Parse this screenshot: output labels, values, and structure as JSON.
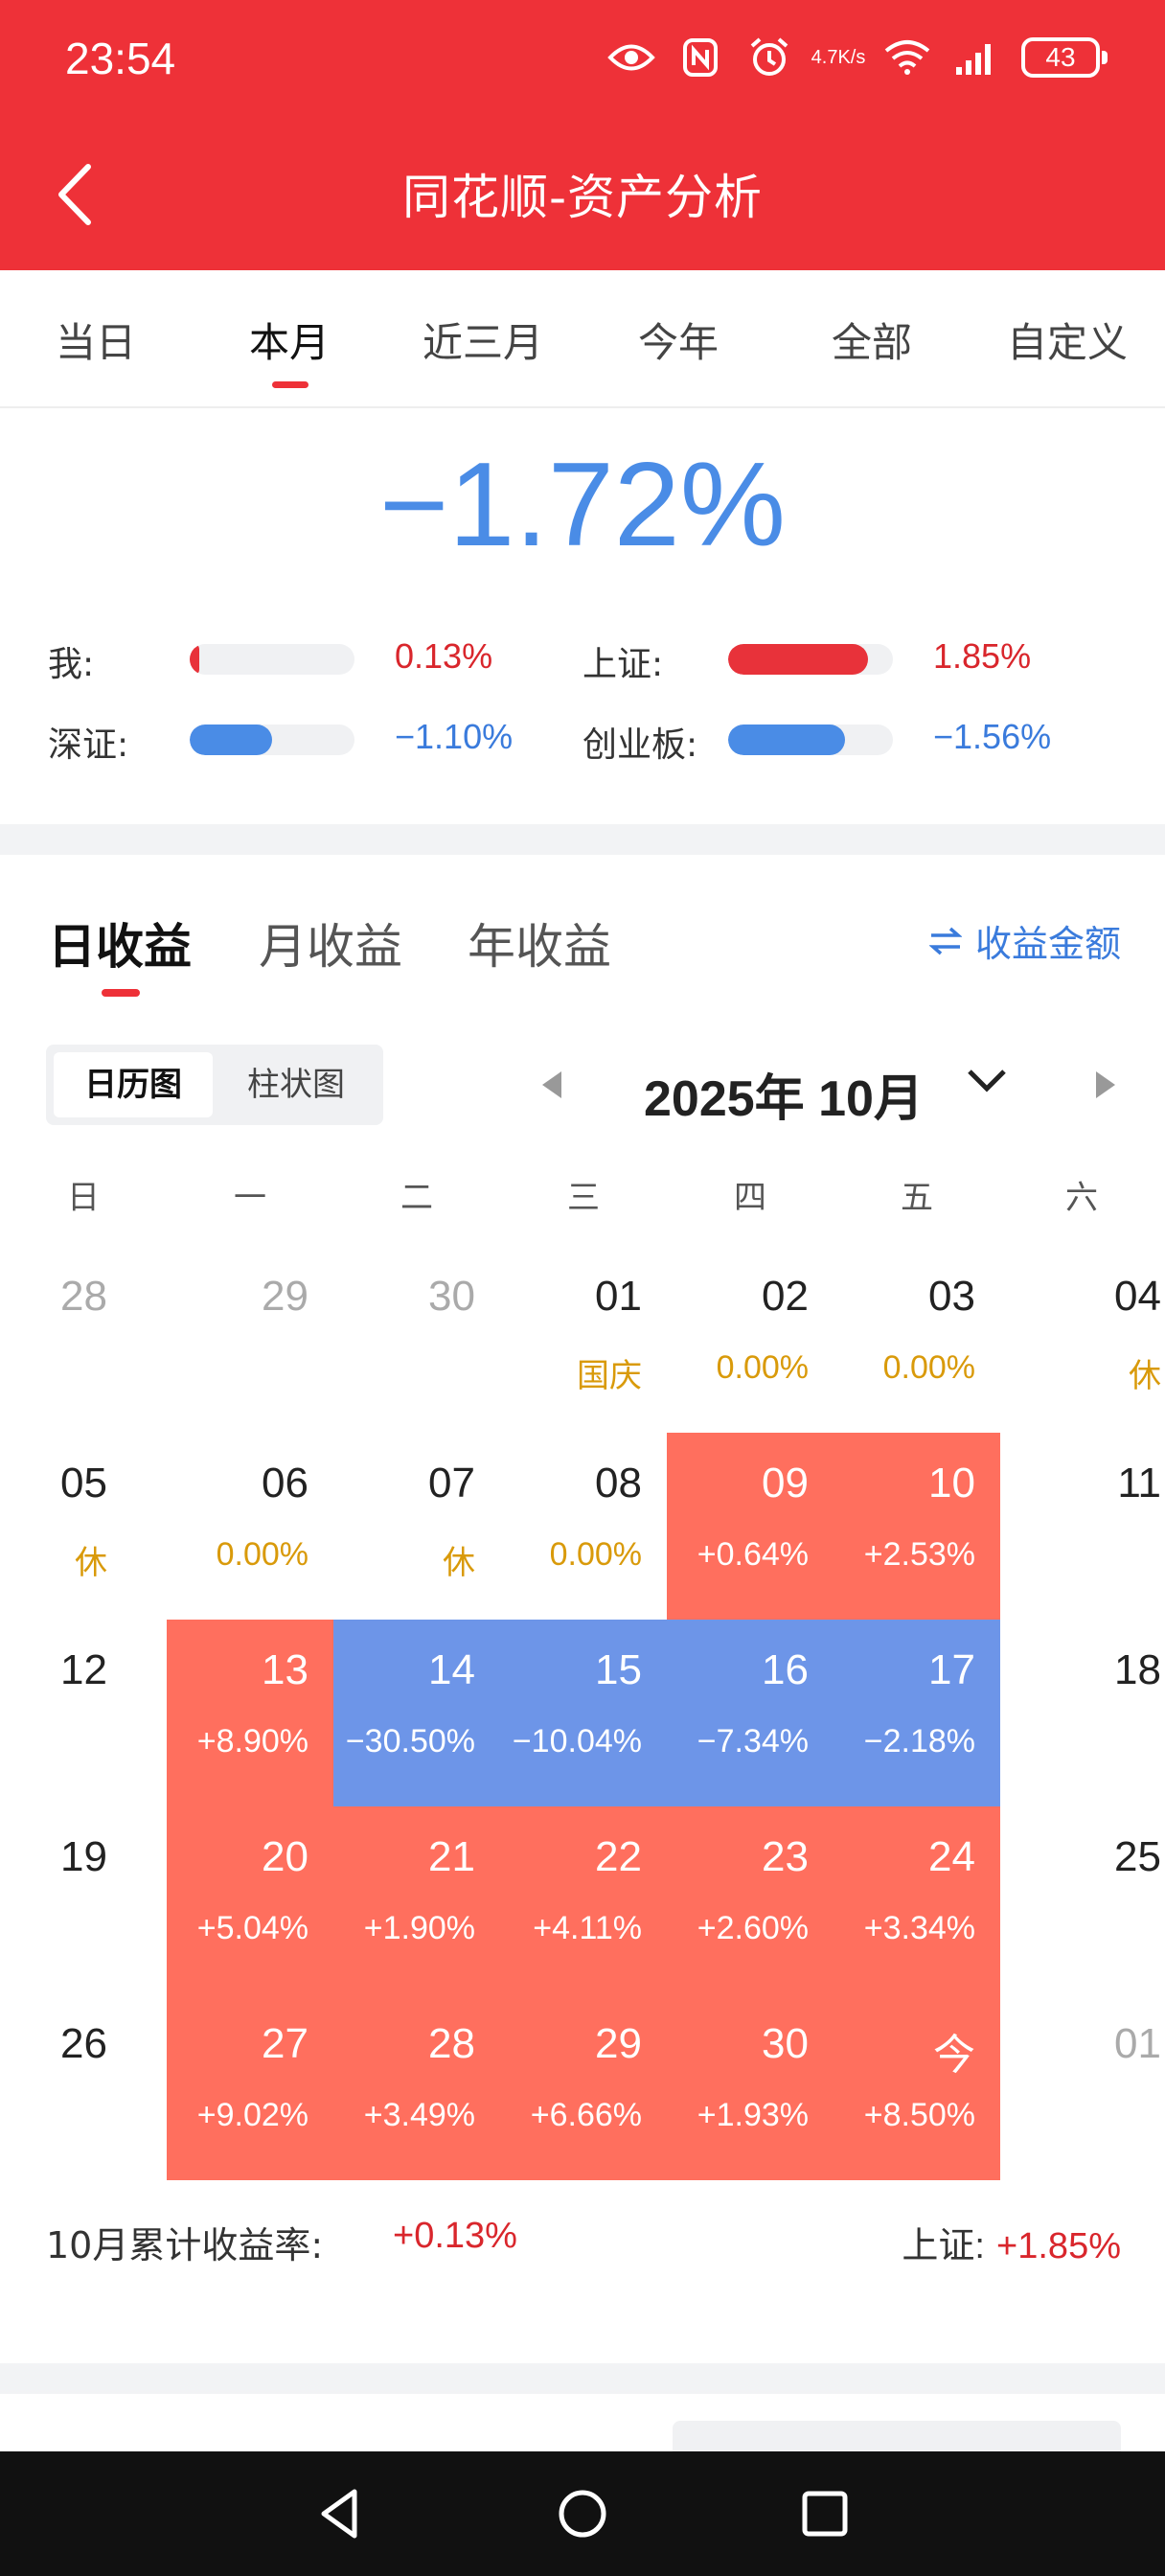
{
  "status_bar": {
    "time": "23:54",
    "net_speed_top": "4.7",
    "net_speed_bottom": "K/s",
    "battery": "43"
  },
  "header": {
    "title": "同花顺-资产分析"
  },
  "range_tabs": [
    "当日",
    "本月",
    "近三月",
    "今年",
    "全部",
    "自定义"
  ],
  "range_active": "本月",
  "summary": {
    "total_pct": "−1.72%",
    "comparisons": [
      {
        "label": "我:",
        "value": "0.13%",
        "fraction": 0.03,
        "color": "#e8323a"
      },
      {
        "label": "上证:",
        "value": "1.85%",
        "fraction": 0.85,
        "color": "#e8323a"
      },
      {
        "label": "深证:",
        "value": "−1.10%",
        "fraction": 0.5,
        "color": "#4a8ce6"
      },
      {
        "label": "创业板:",
        "value": "−1.56%",
        "fraction": 0.71,
        "color": "#4a8ce6"
      }
    ]
  },
  "income": {
    "tabs": [
      "日收益",
      "月收益",
      "年收益"
    ],
    "active_tab": "日收益",
    "amount_link": "收益金额",
    "view_toggle": [
      "日历图",
      "柱状图"
    ],
    "view_active": "日历图",
    "month": "2025年 10月",
    "weekdays": [
      "日",
      "一",
      "二",
      "三",
      "四",
      "五",
      "六"
    ],
    "weeks": [
      [
        {
          "d": "28",
          "s": "",
          "t": "dim"
        },
        {
          "d": "29",
          "s": "",
          "t": "dim"
        },
        {
          "d": "30",
          "s": "",
          "t": "dim"
        },
        {
          "d": "01",
          "s": "国庆",
          "t": "hol"
        },
        {
          "d": "02",
          "s": "0.00%",
          "t": "hol"
        },
        {
          "d": "03",
          "s": "0.00%",
          "t": "hol"
        },
        {
          "d": "04",
          "s": "休",
          "t": "hol"
        }
      ],
      [
        {
          "d": "05",
          "s": "休",
          "t": "hol"
        },
        {
          "d": "06",
          "s": "0.00%",
          "t": "hol"
        },
        {
          "d": "07",
          "s": "休",
          "t": "hol"
        },
        {
          "d": "08",
          "s": "0.00%",
          "t": "hol"
        },
        {
          "d": "09",
          "s": "+0.64%",
          "t": "pos"
        },
        {
          "d": "10",
          "s": "+2.53%",
          "t": "pos"
        },
        {
          "d": "11",
          "s": "",
          "t": "plain"
        }
      ],
      [
        {
          "d": "12",
          "s": "",
          "t": "plain"
        },
        {
          "d": "13",
          "s": "+8.90%",
          "t": "pos"
        },
        {
          "d": "14",
          "s": "−30.50%",
          "t": "neg"
        },
        {
          "d": "15",
          "s": "−10.04%",
          "t": "neg"
        },
        {
          "d": "16",
          "s": "−7.34%",
          "t": "neg"
        },
        {
          "d": "17",
          "s": "−2.18%",
          "t": "neg"
        },
        {
          "d": "18",
          "s": "",
          "t": "plain"
        }
      ],
      [
        {
          "d": "19",
          "s": "",
          "t": "plain"
        },
        {
          "d": "20",
          "s": "+5.04%",
          "t": "pos"
        },
        {
          "d": "21",
          "s": "+1.90%",
          "t": "pos"
        },
        {
          "d": "22",
          "s": "+4.11%",
          "t": "pos"
        },
        {
          "d": "23",
          "s": "+2.60%",
          "t": "pos"
        },
        {
          "d": "24",
          "s": "+3.34%",
          "t": "pos"
        },
        {
          "d": "25",
          "s": "",
          "t": "plain"
        }
      ],
      [
        {
          "d": "26",
          "s": "",
          "t": "plain"
        },
        {
          "d": "27",
          "s": "+9.02%",
          "t": "pos"
        },
        {
          "d": "28",
          "s": "+3.49%",
          "t": "pos"
        },
        {
          "d": "29",
          "s": "+6.66%",
          "t": "pos"
        },
        {
          "d": "30",
          "s": "+1.93%",
          "t": "pos"
        },
        {
          "d": "今",
          "s": "+8.50%",
          "t": "pos"
        },
        {
          "d": "01",
          "s": "",
          "t": "dim"
        }
      ]
    ],
    "cumulative_label": "10月累计收益率:",
    "cumulative_value": "+0.13%",
    "index_label": "上证:",
    "index_value": "+1.85%"
  },
  "colors": {
    "brand_red": "#ee3138",
    "positive_cell": "#ff6f5e",
    "negative_cell": "#6d95e8",
    "holiday_text": "#d99a0a",
    "link_blue": "#3a7bdc"
  },
  "icons": [
    "eye-icon",
    "nfc-icon",
    "alarm-icon",
    "wifi-icon",
    "signal-icon",
    "battery-icon",
    "back-arrow-icon",
    "swap-icon",
    "chevron-down-icon",
    "prev-month-icon",
    "next-month-icon",
    "nav-back-icon",
    "nav-home-icon",
    "nav-recents-icon"
  ]
}
